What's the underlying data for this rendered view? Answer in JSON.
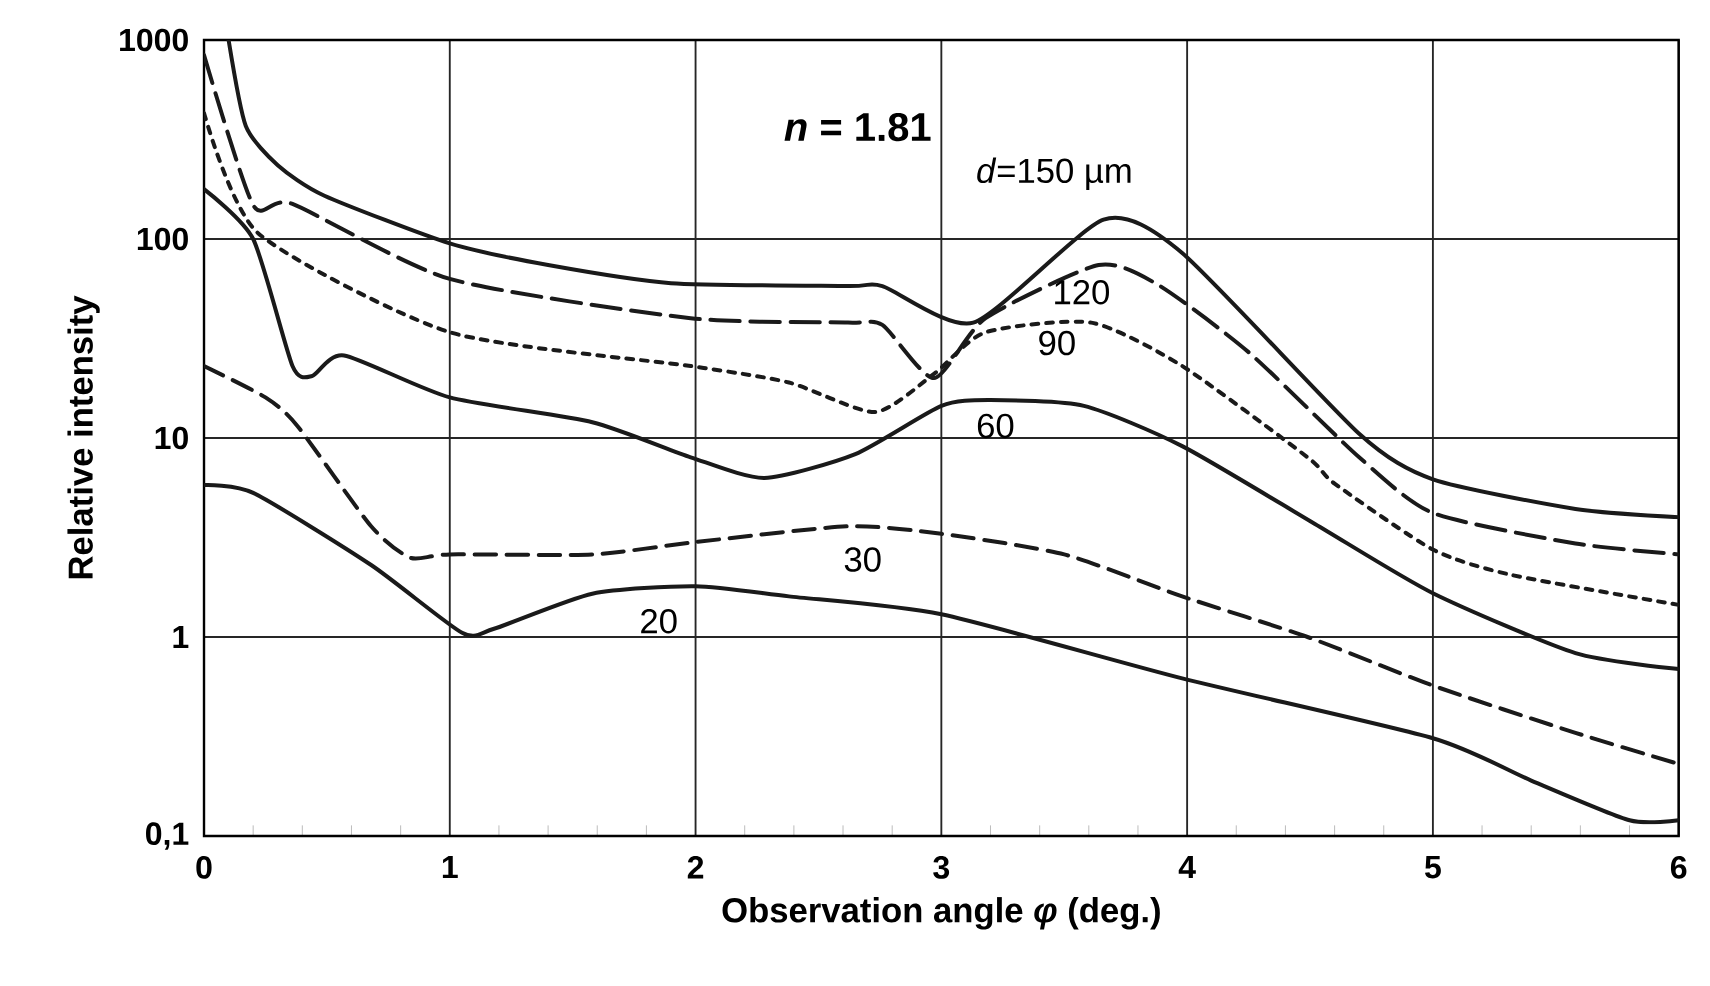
{
  "chart_data": {
    "type": "line",
    "xlabel": "Observation angle *φ* (deg.)",
    "ylabel": "Relative intensity",
    "annotations": [
      "*n* = 1.81"
    ],
    "log": "y",
    "grid": true,
    "marker": "none",
    "xlim": [
      0,
      6
    ],
    "xticks": [
      0,
      1,
      2,
      3,
      4,
      5,
      6
    ],
    "ylim": [
      0.1,
      1000
    ],
    "yticks": [
      {
        "value": 0.1,
        "label": "0,1"
      },
      1,
      10,
      100,
      1000
    ],
    "series": [
      {
        "name": "*d*=150 µm",
        "color": "#1a1a1a",
        "line_style": "solid",
        "x": [
          0.1,
          0.17,
          0.3,
          0.49,
          1.0,
          1.4,
          1.9,
          2.62,
          2.76,
          3.13,
          3.66,
          3.98,
          4.7,
          5.0,
          5.58,
          6.0
        ],
        "values": [
          1000,
          370,
          235,
          165,
          95,
          74,
          60,
          58,
          58,
          38,
          125,
          85,
          10.5,
          6.2,
          4.4,
          4.0
        ]
      },
      {
        "name": "120",
        "color": "#1a1a1a",
        "line_style": "dashed",
        "x": [
          0,
          0.2,
          0.36,
          1.0,
          1.98,
          2.62,
          2.76,
          2.97,
          3.18,
          3.64,
          3.88,
          4.25,
          4.7,
          5.0,
          5.58,
          6.0
        ],
        "values": [
          840,
          148,
          150,
          63,
          40,
          38,
          37,
          20,
          40,
          74,
          59,
          27,
          8,
          4.2,
          2.95,
          2.6
        ]
      },
      {
        "name": "90",
        "color": "#1a1a1a",
        "line_style": "dotted",
        "x": [
          0,
          0.22,
          1.0,
          1.98,
          2.38,
          2.73,
          2.97,
          3.18,
          3.61,
          3.98,
          4.49,
          4.6,
          5.0,
          5.32,
          6.0
        ],
        "values": [
          430,
          107,
          34,
          23,
          19,
          13.5,
          21,
          34,
          38,
          23,
          8,
          5.9,
          2.75,
          2.05,
          1.45
        ]
      },
      {
        "name": "60",
        "color": "#1a1a1a",
        "line_style": "solid",
        "x": [
          0,
          0.2,
          0.36,
          0.44,
          0.57,
          1.0,
          1.58,
          1.98,
          2.28,
          2.65,
          3.0,
          3.2,
          3.58,
          3.98,
          4.52,
          5.0,
          5.58,
          6.0
        ],
        "values": [
          178,
          100,
          23,
          20.5,
          26,
          16,
          12,
          8,
          6.3,
          8.3,
          14.5,
          15.5,
          14.5,
          9.1,
          3.7,
          1.66,
          0.83,
          0.69
        ]
      },
      {
        "name": "30",
        "color": "#1a1a1a",
        "line_style": "dashed",
        "x": [
          0,
          0.25,
          0.38,
          0.68,
          0.84,
          1.0,
          1.58,
          2.0,
          2.62,
          3.0,
          3.5,
          3.98,
          4.49,
          5.0,
          5.58,
          6.0
        ],
        "values": [
          23,
          16,
          11.5,
          3.6,
          2.5,
          2.6,
          2.6,
          3.0,
          3.6,
          3.3,
          2.6,
          1.6,
          1.0,
          0.57,
          0.33,
          0.23
        ]
      },
      {
        "name": "20",
        "color": "#1a1a1a",
        "line_style": "solid",
        "x": [
          0,
          0.2,
          0.68,
          1.05,
          1.18,
          1.58,
          2.0,
          2.38,
          3.0,
          3.98,
          5.0,
          5.4,
          5.8,
          6.0
        ],
        "values": [
          5.8,
          5.3,
          2.3,
          1.05,
          1.1,
          1.65,
          1.8,
          1.6,
          1.3,
          0.62,
          0.31,
          0.19,
          0.12,
          0.12
        ]
      }
    ]
  }
}
